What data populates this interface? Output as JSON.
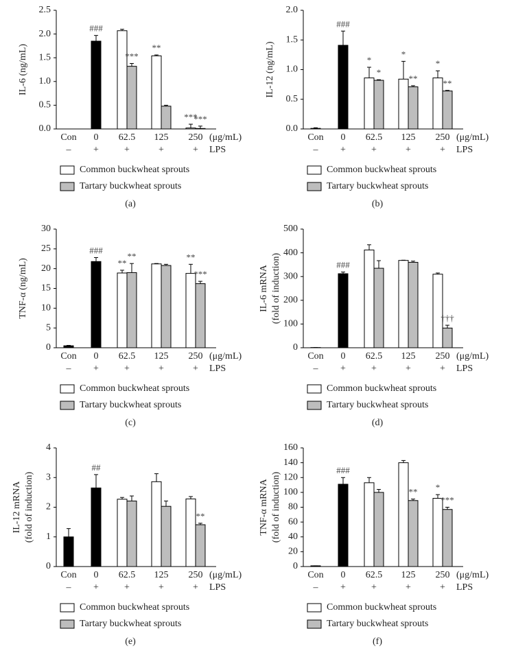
{
  "chart_data": [
    {
      "type": "bar",
      "ylabel": [
        "IL-6 (ng/mL)"
      ],
      "panel": "(a)",
      "categories": [
        "Con",
        "0",
        "62.5",
        "125",
        "250"
      ],
      "unit": "(μg/mL)",
      "lps": [
        "–",
        "+",
        "+",
        "+",
        "+"
      ],
      "lps_label": "LPS",
      "ylim": [
        0,
        2.5
      ],
      "yticks": [
        {
          "value": 0,
          "label": "0.0"
        },
        0.5,
        {
          "value": 1,
          "label": "1.0"
        },
        1.5,
        {
          "value": 2,
          "label": "2.0"
        },
        2.5
      ],
      "series": [
        {
          "color": "#000000",
          "values": [
            0,
            1.85,
            null,
            null,
            null
          ],
          "errors": [
            0,
            0.12,
            null,
            null,
            null
          ],
          "annotations": [
            null,
            "###",
            null,
            null,
            null
          ]
        },
        {
          "name": "Common buckwheat sprouts",
          "color": "#ffffff",
          "values": [
            null,
            null,
            2.07,
            1.54,
            0.02
          ],
          "errors": [
            null,
            null,
            0.03,
            0.02,
            0.08
          ],
          "annotations": [
            null,
            null,
            null,
            "**",
            "***"
          ]
        },
        {
          "name": "Tartary buckwheat sprouts",
          "color": "#bdbdbd",
          "values": [
            null,
            null,
            1.32,
            0.48,
            0.01
          ],
          "errors": [
            null,
            null,
            0.06,
            0.02,
            0.05
          ],
          "annotations": [
            null,
            null,
            "***",
            null,
            "***"
          ]
        }
      ]
    },
    {
      "type": "bar",
      "ylabel": [
        "IL-12 (ng/mL)"
      ],
      "panel": "(b)",
      "categories": [
        "Con",
        "0",
        "62.5",
        "125",
        "250"
      ],
      "unit": "(μg/mL)",
      "lps": [
        "–",
        "+",
        "+",
        "+",
        "+"
      ],
      "lps_label": "LPS",
      "ylim": [
        0,
        2
      ],
      "yticks": [
        {
          "value": 0,
          "label": "0.0"
        },
        0.5,
        {
          "value": 1,
          "label": "1.0"
        },
        1.5,
        {
          "value": 2,
          "label": "2.0"
        }
      ],
      "series": [
        {
          "color": "#000000",
          "values": [
            0.01,
            1.41,
            null,
            null,
            null
          ],
          "errors": [
            0.01,
            0.24,
            null,
            null,
            null
          ],
          "annotations": [
            null,
            "###",
            null,
            null,
            null
          ]
        },
        {
          "name": "Common buckwheat sprouts",
          "color": "#ffffff",
          "values": [
            null,
            null,
            0.86,
            0.84,
            0.86
          ],
          "errors": [
            null,
            null,
            0.18,
            0.3,
            0.12
          ],
          "annotations": [
            null,
            null,
            "*",
            "*",
            "*"
          ]
        },
        {
          "name": "Tartary buckwheat sprouts",
          "color": "#bdbdbd",
          "values": [
            null,
            null,
            0.82,
            0.71,
            0.64
          ],
          "errors": [
            null,
            null,
            0.01,
            0.02,
            0.01
          ],
          "annotations": [
            null,
            null,
            "*",
            "**",
            "**"
          ]
        }
      ]
    },
    {
      "type": "bar",
      "ylabel": [
        "TNF-α (ng/mL)"
      ],
      "panel": "(c)",
      "categories": [
        "Con",
        "0",
        "62.5",
        "125",
        "250"
      ],
      "unit": "(μg/mL)",
      "lps": [
        "–",
        "+",
        "+",
        "+",
        "+"
      ],
      "lps_label": "LPS",
      "ylim": [
        0,
        30
      ],
      "yticks": [
        0,
        5,
        10,
        15,
        20,
        25,
        30
      ],
      "series": [
        {
          "color": "#000000",
          "values": [
            0.5,
            21.8,
            null,
            null,
            null
          ],
          "errors": [
            0.1,
            1.0,
            null,
            null,
            null
          ],
          "annotations": [
            null,
            "###",
            null,
            null,
            null
          ]
        },
        {
          "name": "Common buckwheat sprouts",
          "color": "#ffffff",
          "values": [
            null,
            null,
            18.9,
            21.2,
            18.8
          ],
          "errors": [
            null,
            null,
            0.7,
            0.1,
            2.3
          ],
          "annotations": [
            null,
            null,
            "**",
            null,
            "**"
          ]
        },
        {
          "name": "Tartary buckwheat sprouts",
          "color": "#bdbdbd",
          "values": [
            null,
            null,
            19.0,
            20.8,
            16.2
          ],
          "errors": [
            null,
            null,
            2.3,
            0.3,
            0.6
          ],
          "annotations": [
            null,
            null,
            "**",
            null,
            "***"
          ]
        }
      ]
    },
    {
      "type": "bar",
      "ylabel": [
        "IL-6 mRNA",
        "(fold of induction)"
      ],
      "panel": "(d)",
      "categories": [
        "Con",
        "0",
        "62.5",
        "125",
        "250"
      ],
      "unit": "(μg/mL)",
      "lps": [
        "–",
        "+",
        "+",
        "+",
        "+"
      ],
      "lps_label": "LPS",
      "ylim": [
        0,
        500
      ],
      "yticks": [
        0,
        100,
        200,
        300,
        400,
        500
      ],
      "series": [
        {
          "color": "#000000",
          "values": [
            1,
            312,
            null,
            null,
            null
          ],
          "errors": [
            0,
            7,
            null,
            null,
            null
          ],
          "annotations": [
            null,
            "###",
            null,
            null,
            null
          ]
        },
        {
          "name": "Common buckwheat sprouts",
          "color": "#ffffff",
          "values": [
            null,
            null,
            412,
            368,
            310
          ],
          "errors": [
            null,
            null,
            22,
            1,
            5
          ],
          "annotations": [
            null,
            null,
            null,
            null,
            null
          ]
        },
        {
          "name": "Tartary buckwheat sprouts",
          "color": "#bdbdbd",
          "values": [
            null,
            null,
            335,
            360,
            83
          ],
          "errors": [
            null,
            null,
            32,
            5,
            12
          ],
          "annotations": [
            null,
            null,
            null,
            null,
            "†††"
          ]
        }
      ]
    },
    {
      "type": "bar",
      "ylabel": [
        "IL-12 mRNA",
        "(fold of induction)"
      ],
      "panel": "(e)",
      "categories": [
        "Con",
        "0",
        "62.5",
        "125",
        "250"
      ],
      "unit": "(μg/mL)",
      "lps": [
        "–",
        "+",
        "+",
        "+",
        "+"
      ],
      "lps_label": "LPS",
      "ylim": [
        0,
        4
      ],
      "yticks": [
        0,
        1,
        2,
        3,
        4
      ],
      "series": [
        {
          "color": "#000000",
          "values": [
            1.0,
            2.65,
            null,
            null,
            null
          ],
          "errors": [
            0.28,
            0.45,
            null,
            null,
            null
          ],
          "annotations": [
            null,
            "##",
            null,
            null,
            null
          ]
        },
        {
          "name": "Common buckwheat sprouts",
          "color": "#ffffff",
          "values": [
            null,
            null,
            2.27,
            2.86,
            2.28
          ],
          "errors": [
            null,
            null,
            0.06,
            0.27,
            0.08
          ],
          "annotations": [
            null,
            null,
            null,
            null,
            null
          ]
        },
        {
          "name": "Tartary buckwheat sprouts",
          "color": "#bdbdbd",
          "values": [
            null,
            null,
            2.21,
            2.03,
            1.41
          ],
          "errors": [
            null,
            null,
            0.17,
            0.18,
            0.05
          ],
          "annotations": [
            null,
            null,
            null,
            null,
            "**"
          ]
        }
      ]
    },
    {
      "type": "bar",
      "ylabel": [
        "TNF-α mRNA",
        "(fold of induction)"
      ],
      "panel": "(f)",
      "categories": [
        "Con",
        "0",
        "62.5",
        "125",
        "250"
      ],
      "unit": "(μg/mL)",
      "lps": [
        "–",
        "+",
        "+",
        "+",
        "+"
      ],
      "lps_label": "LPS",
      "ylim": [
        0,
        160
      ],
      "yticks": [
        0,
        20,
        40,
        60,
        80,
        100,
        120,
        140,
        160
      ],
      "series": [
        {
          "color": "#000000",
          "values": [
            1,
            111,
            null,
            null,
            null
          ],
          "errors": [
            0,
            9,
            null,
            null,
            null
          ],
          "annotations": [
            null,
            "###",
            null,
            null,
            null
          ]
        },
        {
          "name": "Common buckwheat sprouts",
          "color": "#ffffff",
          "values": [
            null,
            null,
            113,
            140,
            92
          ],
          "errors": [
            null,
            null,
            7,
            3,
            5
          ],
          "annotations": [
            null,
            null,
            null,
            null,
            "*"
          ]
        },
        {
          "name": "Tartary buckwheat sprouts",
          "color": "#bdbdbd",
          "values": [
            null,
            null,
            100,
            89,
            77
          ],
          "errors": [
            null,
            null,
            4,
            2,
            3
          ],
          "annotations": [
            null,
            null,
            null,
            "**",
            "***"
          ]
        }
      ]
    }
  ]
}
